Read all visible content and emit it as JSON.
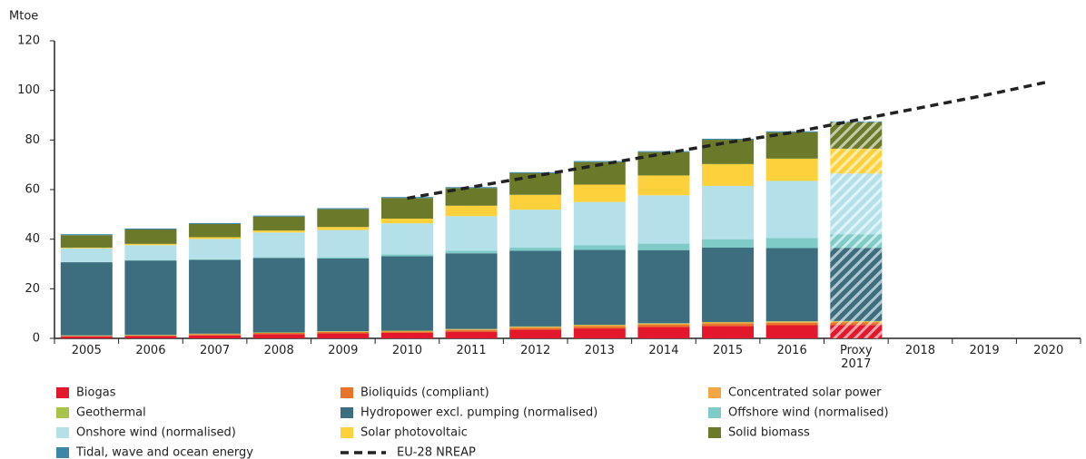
{
  "chart_data": {
    "type": "bar",
    "stacked": true,
    "ylabel": "Mtoe",
    "categories": [
      "2005",
      "2006",
      "2007",
      "2008",
      "2009",
      "2010",
      "2011",
      "2012",
      "2013",
      "2014",
      "2015",
      "2016",
      "Proxy 2017",
      "2018",
      "2019",
      "2020"
    ],
    "hatched": [
      false,
      false,
      false,
      false,
      false,
      false,
      false,
      false,
      false,
      false,
      false,
      false,
      true,
      false,
      false,
      false
    ],
    "ylim": [
      0,
      120
    ],
    "yticks": [
      0,
      20,
      40,
      60,
      80,
      100,
      120
    ],
    "series": [
      {
        "name": "Biogas",
        "color": "#e3182d",
        "values": [
          0.8,
          0.9,
          1.2,
          1.7,
          2,
          2.2,
          2.7,
          3.5,
          4,
          4.6,
          5,
          5.3,
          5.4,
          null,
          null,
          null
        ]
      },
      {
        "name": "Bioliquids (compliant)",
        "color": "#e8742a",
        "values": [
          0.2,
          0.3,
          0.5,
          0.5,
          0.6,
          0.6,
          0.7,
          0.8,
          0.9,
          0.9,
          1,
          1,
          1,
          null,
          null,
          null
        ]
      },
      {
        "name": "Concentrated solar power",
        "color": "#f3a646",
        "values": [
          0,
          0,
          0,
          0,
          0.1,
          0.1,
          0.2,
          0.3,
          0.4,
          0.4,
          0.4,
          0.4,
          0.4,
          null,
          null,
          null
        ]
      },
      {
        "name": "Geothermal",
        "color": "#a8c34a",
        "values": [
          0.2,
          0.2,
          0.2,
          0.2,
          0.2,
          0.2,
          0.2,
          0.2,
          0.2,
          0.2,
          0.2,
          0.2,
          0.2,
          null,
          null,
          null
        ]
      },
      {
        "name": "Hydropower excl. pumping (normalised)",
        "color": "#3c6e80",
        "values": [
          29.5,
          30,
          29.8,
          30,
          29.3,
          30,
          30.5,
          30.5,
          30.2,
          29.5,
          30,
          29.5,
          29.5,
          null,
          null,
          null
        ]
      },
      {
        "name": "Offshore wind (normalised)",
        "color": "#7fcbc8",
        "values": [
          0.1,
          0.2,
          0.2,
          0.3,
          0.5,
          0.8,
          1,
          1.3,
          1.8,
          2.6,
          3.4,
          4.1,
          5.5,
          null,
          null,
          null
        ]
      },
      {
        "name": "Onshore wind (normalised)",
        "color": "#b4e0ea",
        "values": [
          5.5,
          6,
          8.2,
          10,
          11,
          12.5,
          14,
          15.3,
          17.5,
          19.5,
          21.5,
          23,
          24.5,
          null,
          null,
          null
        ]
      },
      {
        "name": "Solar photovoltaic",
        "color": "#fdd13c",
        "values": [
          0.3,
          0.5,
          0.7,
          0.8,
          1.2,
          1.9,
          4.2,
          6,
          7,
          8,
          8.8,
          9,
          10,
          null,
          null,
          null
        ]
      },
      {
        "name": "Solid biomass",
        "color": "#6b7a2a",
        "values": [
          5,
          5.8,
          5.3,
          5.6,
          7.2,
          8.3,
          7.1,
          8.7,
          9.1,
          9.4,
          9.8,
          10.6,
          10.6,
          null,
          null,
          null
        ]
      },
      {
        "name": "Tidal, wave and ocean energy",
        "color": "#3e86a8",
        "values": [
          0.4,
          0.4,
          0.4,
          0.4,
          0.4,
          0.4,
          0.4,
          0.4,
          0.4,
          0.4,
          0.4,
          0.4,
          0.4,
          null,
          null,
          null
        ]
      }
    ],
    "line_series": {
      "name": "EU-28 NREAP",
      "color": "#222222",
      "values": [
        null,
        null,
        null,
        null,
        null,
        56.5,
        61,
        65.5,
        70,
        74.5,
        79,
        83,
        88,
        93,
        98,
        103.5
      ]
    }
  }
}
